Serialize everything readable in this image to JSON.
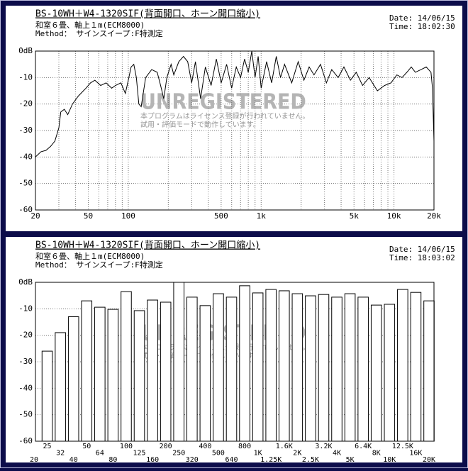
{
  "chart_data": [
    {
      "type": "line",
      "title": "BS-10WH＋W4-1320SIF(背面開口、ホーン開口縮小)",
      "notes": [
        "和室６畳、軸上１m(ECM8000)",
        "Method： サインスイープ:F特測定"
      ],
      "date": "Date: 14/06/15",
      "time": "Time: 18:02:30",
      "watermark": [
        "UNREGISTERED",
        "本プログラムはライセンス登録が行われていません。",
        "試用・評価モードで動作しています。"
      ],
      "log_x": true,
      "grid": true,
      "color": "#000000",
      "xlim": [
        20,
        20000
      ],
      "xticks": [
        20,
        50,
        100,
        500,
        {
          "value": 1000,
          "label": "1k"
        },
        {
          "value": 5000,
          "label": "5k"
        },
        {
          "value": 10000,
          "label": "10k"
        },
        {
          "value": 20000,
          "label": "20k"
        }
      ],
      "x_minor_grid": [
        30,
        40,
        60,
        70,
        80,
        90,
        200,
        300,
        400,
        600,
        700,
        800,
        900,
        2000,
        3000,
        4000,
        6000,
        7000,
        8000,
        9000
      ],
      "ylim": [
        -60,
        0
      ],
      "yticks": [
        {
          "value": 0,
          "label": "0dB"
        },
        -10,
        -20,
        -30,
        -40,
        -50,
        -60
      ],
      "x": [
        20,
        22,
        24,
        26,
        28,
        30,
        31,
        33,
        35,
        38,
        42,
        48,
        52,
        56,
        62,
        68,
        75,
        80,
        88,
        95,
        100,
        105,
        110,
        115,
        120,
        125,
        135,
        150,
        165,
        175,
        185,
        195,
        210,
        220,
        240,
        260,
        280,
        300,
        320,
        350,
        380,
        420,
        460,
        500,
        550,
        600,
        650,
        700,
        750,
        800,
        850,
        900,
        950,
        1000,
        1100,
        1200,
        1300,
        1400,
        1500,
        1700,
        1900,
        2100,
        2300,
        2500,
        2800,
        3100,
        3400,
        3800,
        4200,
        4700,
        5200,
        5800,
        6500,
        7500,
        8500,
        9500,
        10500,
        11500,
        12500,
        13500,
        14500,
        16000,
        17500,
        19000,
        19500,
        20000
      ],
      "values": [
        -40,
        -38,
        -37.5,
        -36,
        -34,
        -29,
        -23,
        -22,
        -24,
        -20,
        -17,
        -14,
        -12,
        -11,
        -13,
        -12,
        -14,
        -13,
        -12,
        -16,
        -11,
        -6,
        -5,
        -10,
        -20,
        -21,
        -10,
        -7,
        -8,
        -13,
        -18,
        -10,
        -5,
        -9,
        -4,
        -2,
        -4,
        -12,
        -4,
        -18,
        -6,
        -13,
        -3,
        -12,
        -5,
        -14,
        -6,
        -10,
        -3,
        -8,
        0,
        -10,
        -2,
        -14,
        -4,
        -12,
        -2,
        -10,
        -5,
        -12,
        -4,
        -11,
        -6,
        -9,
        -5,
        -12,
        -7,
        -10,
        -6,
        -11,
        -8,
        -13,
        -10,
        -15,
        -13,
        -12,
        -9,
        -10,
        -8,
        -6,
        -8,
        -7,
        -6,
        -8,
        -14,
        -34
      ]
    },
    {
      "type": "bar",
      "title": "BS-10WH＋W4-1320SIF(背面開口、ホーン開口縮小)",
      "notes": [
        "和室６畳、軸上１m(ECM8000)",
        "Method： サインスイープ:F特測定"
      ],
      "date": "Date: 14/06/15",
      "time": "Time: 18:03:02",
      "watermark": [
        "UNREGISTERED",
        "本プログラムはライセンス登録が行われていません。",
        "試用・評価モードで動作しています。"
      ],
      "grid": true,
      "color": "#ffffff",
      "ylim": [
        -60,
        0
      ],
      "yticks": [
        {
          "value": 0,
          "label": "0dB"
        },
        -10,
        -20,
        -30,
        -40,
        -50,
        -60
      ],
      "categories": [
        "20",
        "25",
        "32",
        "40",
        "50",
        "64",
        "80",
        "100",
        "125",
        "160",
        "200",
        "250",
        "320",
        "400",
        "500",
        "640",
        "800",
        "1K",
        "1.25K",
        "1.6K",
        "2K",
        "2.5K",
        "3.2K",
        "4K",
        "5K",
        "6.4K",
        "8K",
        "10K",
        "12.5K",
        "16K",
        "20K"
      ],
      "values": [
        null,
        -26,
        -19,
        -13,
        -7,
        -9.4,
        -10.2,
        -3.5,
        -10.7,
        -6.7,
        -7.5,
        0,
        -5.6,
        -8.8,
        -4.3,
        -5.6,
        -1.3,
        -4,
        -2.7,
        -3.2,
        -4.3,
        -5.1,
        -4.6,
        -5.6,
        -4.3,
        -5.6,
        -8.6,
        -8.3,
        -2.7,
        -3.8,
        -7
      ]
    }
  ]
}
